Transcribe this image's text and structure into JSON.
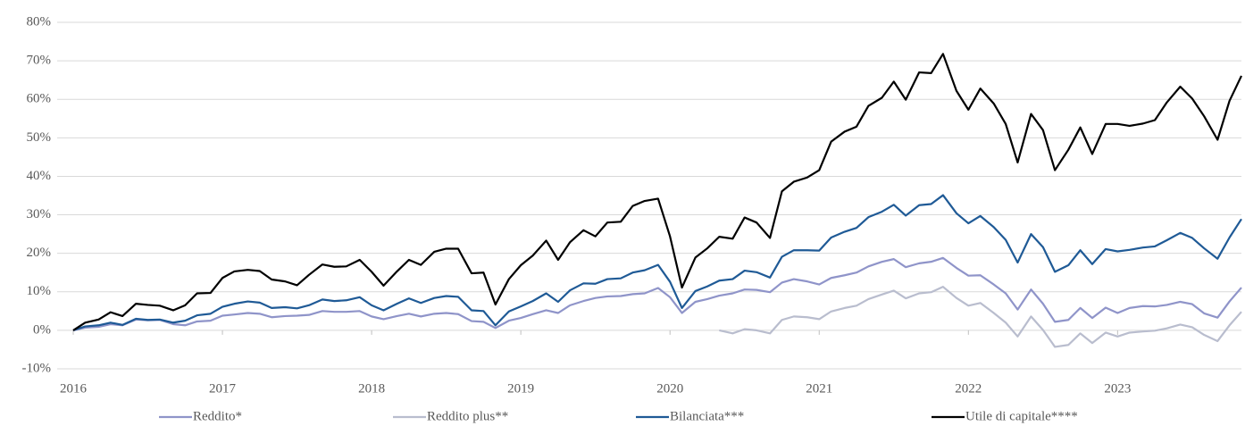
{
  "chart_data": {
    "type": "line",
    "x": [
      2016,
      2016.08,
      2016.17,
      2016.25,
      2016.33,
      2016.42,
      2016.5,
      2016.58,
      2016.67,
      2016.75,
      2016.83,
      2016.92,
      2017,
      2017.08,
      2017.17,
      2017.25,
      2017.33,
      2017.42,
      2017.5,
      2017.58,
      2017.67,
      2017.75,
      2017.83,
      2017.92,
      2018,
      2018.08,
      2018.17,
      2018.25,
      2018.33,
      2018.42,
      2018.5,
      2018.58,
      2018.67,
      2018.75,
      2018.83,
      2018.92,
      2019,
      2019.08,
      2019.17,
      2019.25,
      2019.33,
      2019.42,
      2019.5,
      2019.58,
      2019.67,
      2019.75,
      2019.83,
      2019.92,
      2020,
      2020.08,
      2020.17,
      2020.25,
      2020.33,
      2020.42,
      2020.5,
      2020.58,
      2020.67,
      2020.75,
      2020.83,
      2020.92,
      2021,
      2021.08,
      2021.17,
      2021.25,
      2021.33,
      2021.42,
      2021.5,
      2021.58,
      2021.67,
      2021.75,
      2021.83,
      2021.92,
      2022,
      2022.08,
      2022.17,
      2022.25,
      2022.33,
      2022.42,
      2022.5,
      2022.58,
      2022.67,
      2022.75,
      2022.83,
      2022.92,
      2023,
      2023.08,
      2023.17,
      2023.25,
      2023.33,
      2023.42,
      2023.5,
      2023.58,
      2023.67,
      2023.75,
      2023.83
    ],
    "xlim": [
      2016,
      2023.83
    ],
    "xticks": [
      2016,
      2017,
      2018,
      2019,
      2020,
      2021,
      2022,
      2023
    ],
    "ylim": [
      -10,
      80
    ],
    "yticks": [
      {
        "value": -10,
        "label": "-10%"
      },
      {
        "value": 0,
        "label": "0%"
      },
      {
        "value": 10,
        "label": "10%"
      },
      {
        "value": 20,
        "label": "20%"
      },
      {
        "value": 30,
        "label": "30%"
      },
      {
        "value": 40,
        "label": "40%"
      },
      {
        "value": 50,
        "label": "50%"
      },
      {
        "value": 60,
        "label": "60%"
      },
      {
        "value": 70,
        "label": "70%"
      },
      {
        "value": 80,
        "label": "80%"
      }
    ],
    "grid": true,
    "legend": "bottom",
    "series": [
      {
        "name": "Reddito*",
        "color": "#8f94c9",
        "values": [
          0,
          0.7,
          0.9,
          1.6,
          1.3,
          2.8,
          2.6,
          2.7,
          1.6,
          1.3,
          2.3,
          2.5,
          3.8,
          4.1,
          4.5,
          4.3,
          3.4,
          3.7,
          3.8,
          4.0,
          5.0,
          4.8,
          4.8,
          5.0,
          3.6,
          2.9,
          3.7,
          4.3,
          3.6,
          4.3,
          4.5,
          4.2,
          2.4,
          2.2,
          0.6,
          2.5,
          3.2,
          4.2,
          5.2,
          4.5,
          6.5,
          7.6,
          8.4,
          8.8,
          8.9,
          9.4,
          9.6,
          11.0,
          8.6,
          4.5,
          7.4,
          8.1,
          9.0,
          9.6,
          10.6,
          10.5,
          9.9,
          12.4,
          13.3,
          12.7,
          11.9,
          13.6,
          14.3,
          15.0,
          16.6,
          17.8,
          18.5,
          16.4,
          17.4,
          17.8,
          18.8,
          16.2,
          14.2,
          14.3,
          11.9,
          9.6,
          5.4,
          10.6,
          6.9,
          2.2,
          2.7,
          5.8,
          3.2,
          5.9,
          4.5,
          5.8,
          6.3,
          6.2,
          6.6,
          7.4,
          6.8,
          4.4,
          3.3,
          7.5,
          11.1
        ]
      },
      {
        "name": "Reddito plus**",
        "color": "#b9bdce",
        "values": [
          null,
          null,
          null,
          null,
          null,
          null,
          null,
          null,
          null,
          null,
          null,
          null,
          null,
          null,
          null,
          null,
          null,
          null,
          null,
          null,
          null,
          null,
          null,
          null,
          null,
          null,
          null,
          null,
          null,
          null,
          null,
          null,
          null,
          null,
          null,
          null,
          null,
          null,
          null,
          null,
          null,
          null,
          null,
          null,
          null,
          null,
          null,
          null,
          null,
          null,
          null,
          null,
          0,
          -0.8,
          0.3,
          0.0,
          -0.8,
          2.7,
          3.6,
          3.4,
          2.9,
          4.9,
          5.8,
          6.4,
          8.1,
          9.3,
          10.3,
          8.3,
          9.6,
          9.9,
          11.3,
          8.4,
          6.4,
          7.1,
          4.5,
          2.0,
          -1.6,
          3.6,
          0.1,
          -4.3,
          -3.8,
          -0.8,
          -3.3,
          -0.6,
          -1.6,
          -0.6,
          -0.3,
          -0.1,
          0.5,
          1.5,
          0.8,
          -1.2,
          -2.8,
          1.3,
          4.8
        ]
      },
      {
        "name": "Bilanciata***",
        "color": "#1f5a96",
        "values": [
          0,
          1,
          1.3,
          2,
          1.4,
          3,
          2.7,
          2.8,
          2,
          2.5,
          3.9,
          4.3,
          6.1,
          6.9,
          7.5,
          7.2,
          5.8,
          6.0,
          5.7,
          6.5,
          8.0,
          7.6,
          7.8,
          8.6,
          6.5,
          5.2,
          6.9,
          8.3,
          7.1,
          8.4,
          8.9,
          8.7,
          5.2,
          5.0,
          1.3,
          4.9,
          6.2,
          7.6,
          9.6,
          7.4,
          10.4,
          12.2,
          12.1,
          13.3,
          13.5,
          15.0,
          15.6,
          17.0,
          12.6,
          5.8,
          10.2,
          11.4,
          12.9,
          13.3,
          15.5,
          15.1,
          13.7,
          19.1,
          20.8,
          20.8,
          20.7,
          24.1,
          25.6,
          26.6,
          29.4,
          30.8,
          32.6,
          29.8,
          32.5,
          32.8,
          35.1,
          30.4,
          27.8,
          29.7,
          26.8,
          23.5,
          17.6,
          25.0,
          21.6,
          15.2,
          16.9,
          20.8,
          17.2,
          21.1,
          20.5,
          20.9,
          21.5,
          21.8,
          23.4,
          25.3,
          24.0,
          21.3,
          18.6,
          24.1,
          28.9
        ]
      },
      {
        "name": "Utile di capitale****",
        "color": "#000000",
        "values": [
          0,
          2,
          2.8,
          4.7,
          3.7,
          6.9,
          6.6,
          6.4,
          5.2,
          6.5,
          9.6,
          9.7,
          13.6,
          15.3,
          15.7,
          15.4,
          13.2,
          12.7,
          11.7,
          14.4,
          17.1,
          16.5,
          16.6,
          18.3,
          15.2,
          11.6,
          15.3,
          18.3,
          17.0,
          20.4,
          21.2,
          21.2,
          14.8,
          15.0,
          6.7,
          13.3,
          16.9,
          19.4,
          23.3,
          18.3,
          22.9,
          26.0,
          24.4,
          28.0,
          28.2,
          32.3,
          33.6,
          34.2,
          24.4,
          11.1,
          18.9,
          21.3,
          24.3,
          23.8,
          29.3,
          28.0,
          24.0,
          36.1,
          38.6,
          39.7,
          41.6,
          49.0,
          51.6,
          52.9,
          58.3,
          60.4,
          64.6,
          59.9,
          67.0,
          66.8,
          71.8,
          62.2,
          57.3,
          62.8,
          58.9,
          53.6,
          43.6,
          56.2,
          52.0,
          41.6,
          46.9,
          52.7,
          45.8,
          53.6,
          53.6,
          53.1,
          53.7,
          54.6,
          59.2,
          63.3,
          60.2,
          55.6,
          49.5,
          59.6,
          66.1
        ]
      }
    ]
  }
}
